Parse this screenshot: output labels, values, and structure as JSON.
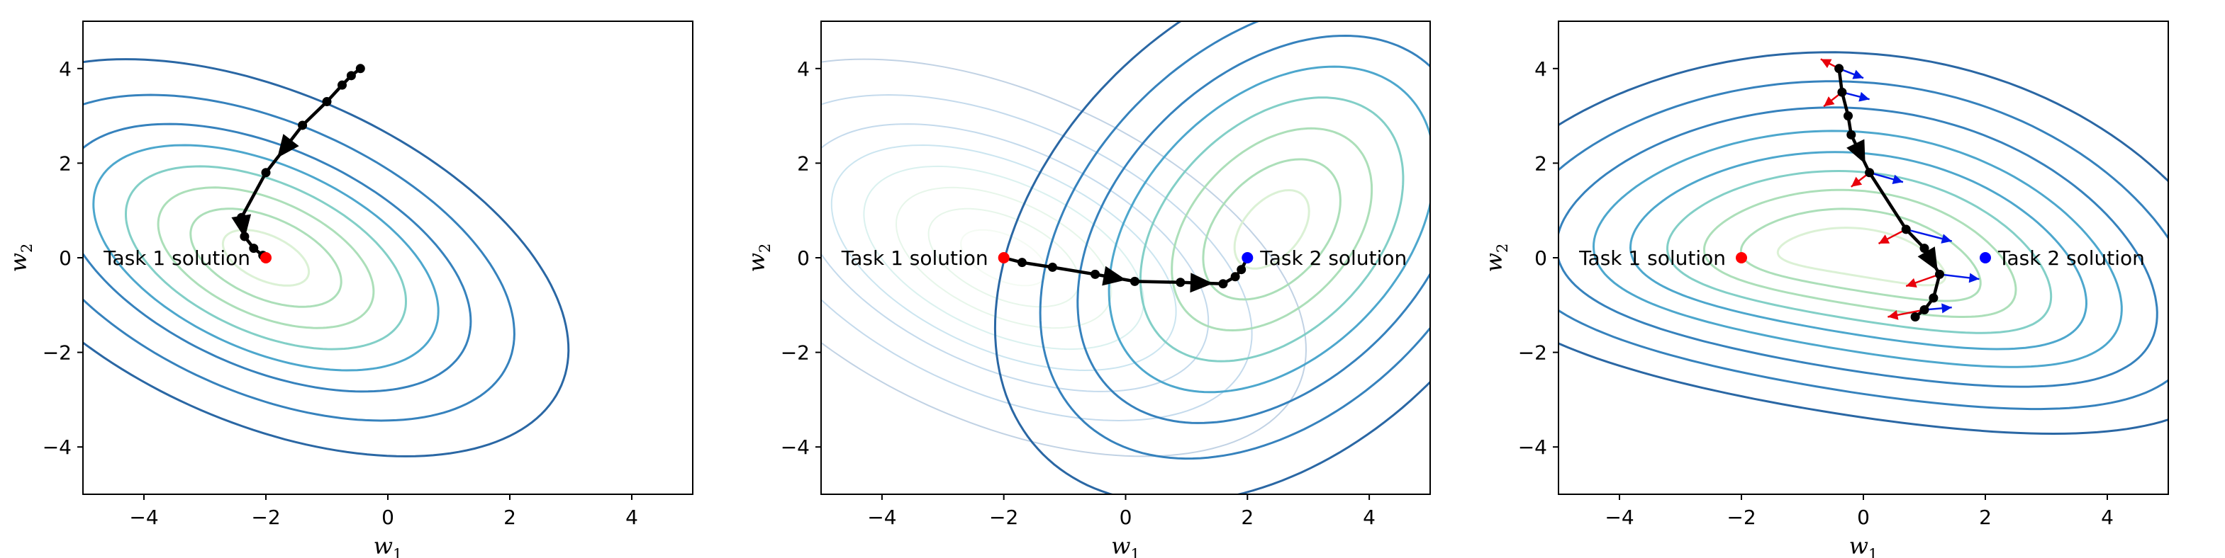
{
  "chart_data": [
    {
      "type": "contour",
      "xlabel": "w",
      "xlabel_sub": "1",
      "ylabel": "w",
      "ylabel_sub": "2",
      "xlim": [
        -5,
        5
      ],
      "ylim": [
        -5,
        5
      ],
      "xticks": [
        -4,
        -2,
        0,
        2,
        4
      ],
      "yticks": [
        -4,
        -2,
        0,
        2,
        4
      ],
      "grid": false,
      "colormap": [
        "#d9f0d3",
        "#a8ddb5",
        "#7bccc4",
        "#43a2ca",
        "#2b7bb9",
        "#1f5f9f"
      ],
      "contours": [
        {
          "center": [
            -2,
            0
          ],
          "angle_deg": -35,
          "levels": [
            [
              0.8,
              0.45
            ],
            [
              1.4,
              0.8
            ],
            [
              2.0,
              1.15
            ],
            [
              2.6,
              1.5
            ],
            [
              3.2,
              1.85
            ],
            [
              3.8,
              2.2
            ],
            [
              4.6,
              2.7
            ],
            [
              5.6,
              3.3
            ]
          ]
        }
      ],
      "solutions": [
        {
          "name": "Task 1 solution",
          "x": -2,
          "y": 0,
          "color": "#ff0000"
        }
      ],
      "path": [
        [
          -0.45,
          4.0
        ],
        [
          -0.6,
          3.85
        ],
        [
          -0.75,
          3.65
        ],
        [
          -1.0,
          3.3
        ],
        [
          -1.4,
          2.8
        ],
        [
          -2.0,
          1.8
        ],
        [
          -2.4,
          0.85
        ],
        [
          -2.35,
          0.45
        ],
        [
          -2.2,
          0.2
        ],
        [
          -2.05,
          0.05
        ],
        [
          -2.0,
          0.0
        ]
      ],
      "arrows_at": [
        4,
        6
      ],
      "gradients": []
    },
    {
      "type": "contour",
      "xlabel": "w",
      "xlabel_sub": "1",
      "ylabel": "w",
      "ylabel_sub": "2",
      "xlim": [
        -5,
        5
      ],
      "ylim": [
        -5,
        5
      ],
      "xticks": [
        -4,
        -2,
        0,
        2,
        4
      ],
      "yticks": [
        -4,
        -2,
        0,
        2,
        4
      ],
      "grid": false,
      "colormap": [
        "#d9f0d3",
        "#a8ddb5",
        "#7bccc4",
        "#43a2ca",
        "#2b7bb9",
        "#1f5f9f"
      ],
      "contours": [
        {
          "center": [
            -2,
            0
          ],
          "angle_deg": -35,
          "faint": true,
          "levels": [
            [
              0.8,
              0.45
            ],
            [
              1.4,
              0.8
            ],
            [
              2.0,
              1.15
            ],
            [
              2.6,
              1.5
            ],
            [
              3.2,
              1.85
            ],
            [
              3.8,
              2.2
            ],
            [
              4.6,
              2.7
            ],
            [
              5.6,
              3.3
            ]
          ]
        },
        {
          "center": [
            2.4,
            0.6
          ],
          "angle_deg": 62,
          "levels": [
            [
              0.9,
              0.5
            ],
            [
              1.6,
              0.95
            ],
            [
              2.3,
              1.4
            ],
            [
              3.0,
              1.85
            ],
            [
              3.7,
              2.3
            ],
            [
              4.4,
              2.75
            ],
            [
              5.2,
              3.3
            ],
            [
              6.2,
              3.95
            ]
          ]
        }
      ],
      "solutions": [
        {
          "name": "Task 1 solution",
          "x": -2,
          "y": 0,
          "color": "#ff0000"
        },
        {
          "name": "Task 2 solution",
          "x": 2,
          "y": 0,
          "color": "#0000ff"
        }
      ],
      "path": [
        [
          -2.0,
          0.0
        ],
        [
          -1.7,
          -0.1
        ],
        [
          -1.2,
          -0.2
        ],
        [
          -0.5,
          -0.35
        ],
        [
          0.15,
          -0.5
        ],
        [
          0.9,
          -0.52
        ],
        [
          1.6,
          -0.55
        ],
        [
          1.8,
          -0.4
        ],
        [
          1.9,
          -0.25
        ],
        [
          2.0,
          0.0
        ]
      ],
      "arrows_at": [
        3,
        5
      ],
      "gradients": []
    },
    {
      "type": "contour",
      "xlabel": "w",
      "xlabel_sub": "1",
      "ylabel": "w",
      "ylabel_sub": "2",
      "xlim": [
        -5,
        5
      ],
      "ylim": [
        -5,
        5
      ],
      "xticks": [
        -4,
        -2,
        0,
        2,
        4
      ],
      "yticks": [
        -4,
        -2,
        0,
        2,
        4
      ],
      "grid": false,
      "colormap": [
        "#d9f0d3",
        "#a8ddb5",
        "#7bccc4",
        "#43a2ca",
        "#2b7bb9",
        "#1f5f9f"
      ],
      "contours": [
        {
          "center": [
            0,
            0
          ],
          "angle_deg": -12,
          "banana": true,
          "levels": [
            [
              1.4,
              0.5
            ],
            [
              2.0,
              0.85
            ],
            [
              2.6,
              1.2
            ],
            [
              3.2,
              1.55
            ],
            [
              3.8,
              1.9
            ],
            [
              4.4,
              2.3
            ],
            [
              5.0,
              2.75
            ],
            [
              5.7,
              3.25
            ],
            [
              6.5,
              3.8
            ]
          ]
        }
      ],
      "solutions": [
        {
          "name": "Task 1 solution",
          "x": -2,
          "y": 0,
          "color": "#ff0000"
        },
        {
          "name": "Task 2 solution",
          "x": 2,
          "y": 0,
          "color": "#0000ff"
        }
      ],
      "path": [
        [
          -0.4,
          4.0
        ],
        [
          -0.35,
          3.5
        ],
        [
          -0.25,
          3.0
        ],
        [
          -0.2,
          2.6
        ],
        [
          0.1,
          1.8
        ],
        [
          0.7,
          0.6
        ],
        [
          1.0,
          0.2
        ],
        [
          1.25,
          -0.35
        ],
        [
          1.15,
          -0.85
        ],
        [
          1.0,
          -1.1
        ],
        [
          0.85,
          -1.25
        ]
      ],
      "arrows_at": [
        3,
        6
      ],
      "gradients": [
        {
          "at": [
            -0.4,
            4.0
          ],
          "red": [
            -0.3,
            0.2
          ],
          "blue": [
            0.4,
            -0.2
          ]
        },
        {
          "at": [
            -0.35,
            3.5
          ],
          "red": [
            -0.3,
            -0.3
          ],
          "blue": [
            0.45,
            -0.15
          ]
        },
        {
          "at": [
            0.1,
            1.8
          ],
          "red": [
            -0.3,
            -0.3
          ],
          "blue": [
            0.55,
            -0.2
          ]
        },
        {
          "at": [
            0.7,
            0.6
          ],
          "red": [
            -0.45,
            -0.3
          ],
          "blue": [
            0.75,
            -0.25
          ]
        },
        {
          "at": [
            1.25,
            -0.35
          ],
          "red": [
            -0.55,
            -0.25
          ],
          "blue": [
            0.65,
            -0.1
          ]
        },
        {
          "at": [
            1.0,
            -1.1
          ],
          "red": [
            -0.6,
            -0.15
          ],
          "blue": [
            0.45,
            0.05
          ]
        }
      ]
    }
  ]
}
